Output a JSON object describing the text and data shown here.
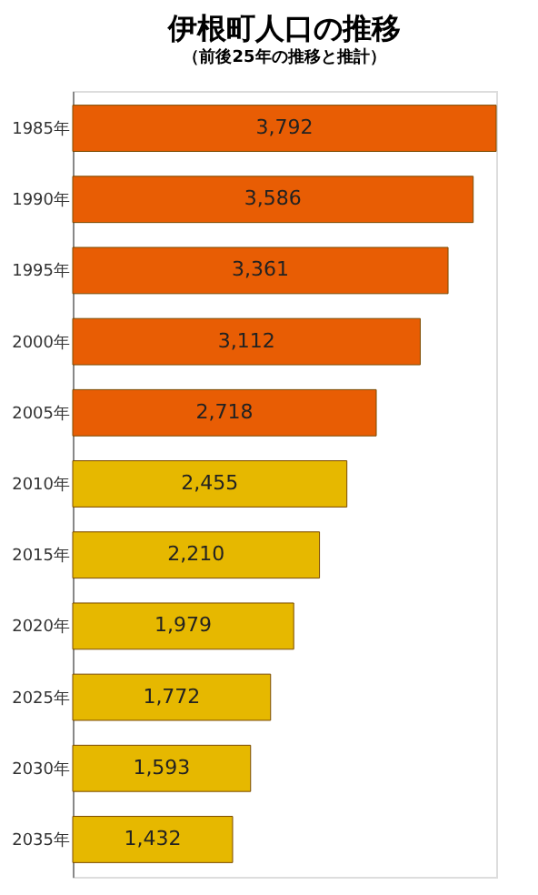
{
  "chart_data": {
    "type": "bar",
    "orientation": "horizontal",
    "title": "伊根町人口の推移",
    "subtitle": "（前後25年の推移と推計）",
    "categories": [
      "1985年",
      "1990年",
      "1995年",
      "2000年",
      "2005年",
      "2010年",
      "2015年",
      "2020年",
      "2025年",
      "2030年",
      "2035年"
    ],
    "values": [
      3792,
      3586,
      3361,
      3112,
      2718,
      2455,
      2210,
      1979,
      1772,
      1593,
      1432
    ],
    "colors": [
      "#e85d04",
      "#e85d04",
      "#e85d04",
      "#e85d04",
      "#e85d04",
      "#e6b800",
      "#e6b800",
      "#e6b800",
      "#e6b800",
      "#e6b800",
      "#e6b800"
    ],
    "value_labels": [
      "3,792",
      "3,586",
      "3,361",
      "3,112",
      "2,718",
      "2,455",
      "2,210",
      "1,979",
      "1,772",
      "1,593",
      "1,432"
    ],
    "tick_labels": "y"
  }
}
